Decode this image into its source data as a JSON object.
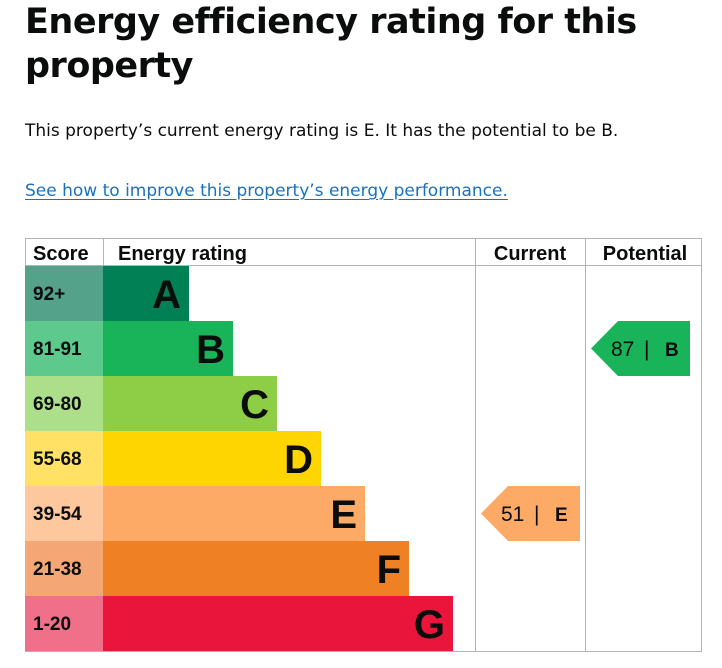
{
  "page": {
    "title": "Energy efficiency rating for this property",
    "summary": "This property’s current energy rating is E. It has the potential to be B.",
    "improve_link": "See how to improve this property’s energy performance."
  },
  "chart_data": {
    "type": "table",
    "columns": [
      "Score",
      "Energy rating",
      "Current",
      "Potential"
    ],
    "bands": [
      {
        "score": "92+",
        "letter": "A",
        "color": "#008054",
        "score_bg": "#54a28a"
      },
      {
        "score": "81-91",
        "letter": "B",
        "color": "#19b459",
        "score_bg": "#5ec98c"
      },
      {
        "score": "69-80",
        "letter": "C",
        "color": "#8dce46",
        "score_bg": "#addf8a"
      },
      {
        "score": "55-68",
        "letter": "D",
        "color": "#ffd500",
        "score_bg": "#ffe265"
      },
      {
        "score": "39-54",
        "letter": "E",
        "color": "#fcaa65",
        "score_bg": "#fdc89e"
      },
      {
        "score": "21-38",
        "letter": "F",
        "color": "#ef8023",
        "score_bg": "#f4a774"
      },
      {
        "score": "1-20",
        "letter": "G",
        "color": "#e9153b",
        "score_bg": "#f0708a"
      }
    ],
    "current": {
      "value": "51",
      "letter": "E",
      "separator": "|"
    },
    "potential": {
      "value": "87",
      "letter": "B",
      "separator": "|"
    }
  }
}
